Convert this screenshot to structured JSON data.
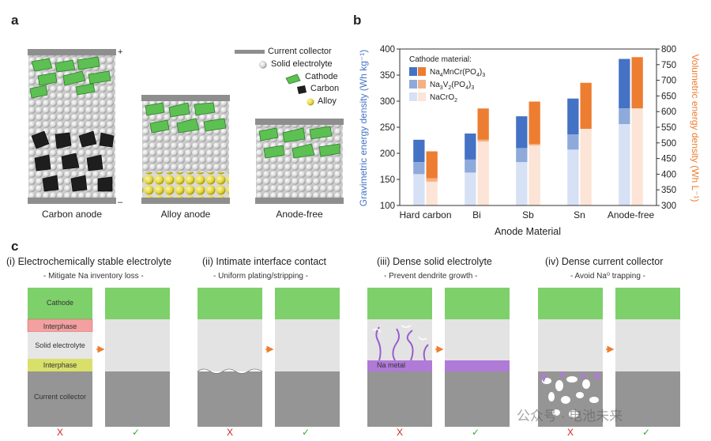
{
  "panel_a": {
    "letter": "a",
    "cells": [
      "Carbon anode",
      "Alloy anode",
      "Anode-free"
    ],
    "plus": "+",
    "minus": "–",
    "legend": [
      {
        "label": "Current collector",
        "icon": "gray-bar-icon"
      },
      {
        "label": "Solid electrolyte",
        "icon": "white-sphere-icon"
      },
      {
        "label": "Cathode",
        "icon": "green-flake-icon"
      },
      {
        "label": "Carbon",
        "icon": "black-particle-icon"
      },
      {
        "label": "Alloy",
        "icon": "yellow-sphere-icon"
      }
    ]
  },
  "panel_b": {
    "letter": "b",
    "legend_title": "Cathode material:",
    "legend_items": [
      "Na4MnCr(PO4)3",
      "Na3V2(PO4)3",
      "NaCrO2"
    ]
  },
  "chart_data": {
    "type": "bar",
    "categories": [
      "Hard carbon",
      "Bi",
      "Sb",
      "Sn",
      "Anode-free"
    ],
    "xlabel": "Anode Material",
    "ylabel": "Gravimetric energy density (Wh kg⁻¹)",
    "y2label": "Volumetric energy density (Wh L⁻¹)",
    "ylim": [
      100,
      400
    ],
    "y2lim": [
      300,
      800
    ],
    "yticks": [
      100,
      150,
      200,
      250,
      300,
      350,
      400
    ],
    "y2ticks": [
      300,
      350,
      400,
      450,
      500,
      550,
      600,
      650,
      700,
      750,
      800
    ],
    "gravimetric": [
      {
        "name": "Na4MnCr(PO4)3",
        "values": [
          226,
          238,
          271,
          305,
          381
        ]
      },
      {
        "name": "Na3V2(PO4)3",
        "values": [
          183,
          188,
          210,
          236,
          286
        ]
      },
      {
        "name": "NaCrO2",
        "values": [
          160,
          163,
          183,
          207,
          256
        ]
      }
    ],
    "volumetric": [
      {
        "name": "Na4MnCr(PO4)3",
        "values": [
          473,
          610,
          632,
          692,
          774
        ]
      },
      {
        "name": "Na3V2(PO4)3",
        "values": [
          387,
          510,
          497,
          545,
          610
        ]
      },
      {
        "name": "NaCrO2",
        "values": [
          376,
          504,
          492,
          545,
          610
        ]
      }
    ],
    "colors": {
      "grav": [
        "#4472c4",
        "#8eaadb",
        "#d6e1f5"
      ],
      "vol": [
        "#ed7d31",
        "#f4b183",
        "#fce4d6"
      ],
      "left_axis": "#4472c4",
      "right_axis": "#ed7d31"
    }
  },
  "panel_c": {
    "letter": "c",
    "sections": [
      {
        "title": "(i) Electrochemically stable electrolyte",
        "subtitle": "- Mitigate Na inventory loss -"
      },
      {
        "title": "(ii) Intimate interface contact",
        "subtitle": "- Uniform plating/stripping -"
      },
      {
        "title": "(iii) Dense solid electrolyte",
        "subtitle": "- Prevent dendrite growth -"
      },
      {
        "title": "(iv) Dense current collector",
        "subtitle": "- Avoid Na⁰ trapping -"
      }
    ],
    "layers": {
      "cathode": "Cathode",
      "interphase": "Interphase",
      "solid_electrolyte": "Solid electrolyte",
      "current_collector": "Current collector",
      "na_metal": "Na metal"
    },
    "bad_mark": "X",
    "good_mark": "✓",
    "colors": {
      "cathode": "#7ed06a",
      "interphase_top": "#f2a0a0",
      "interphase_bottom": "#d9e06a",
      "electrolyte": "#e3e3e3",
      "collector": "#959595",
      "na_metal": "#b07ad8",
      "arrow": "#ed7d31"
    }
  },
  "watermark": "公众号 · 电池未来"
}
